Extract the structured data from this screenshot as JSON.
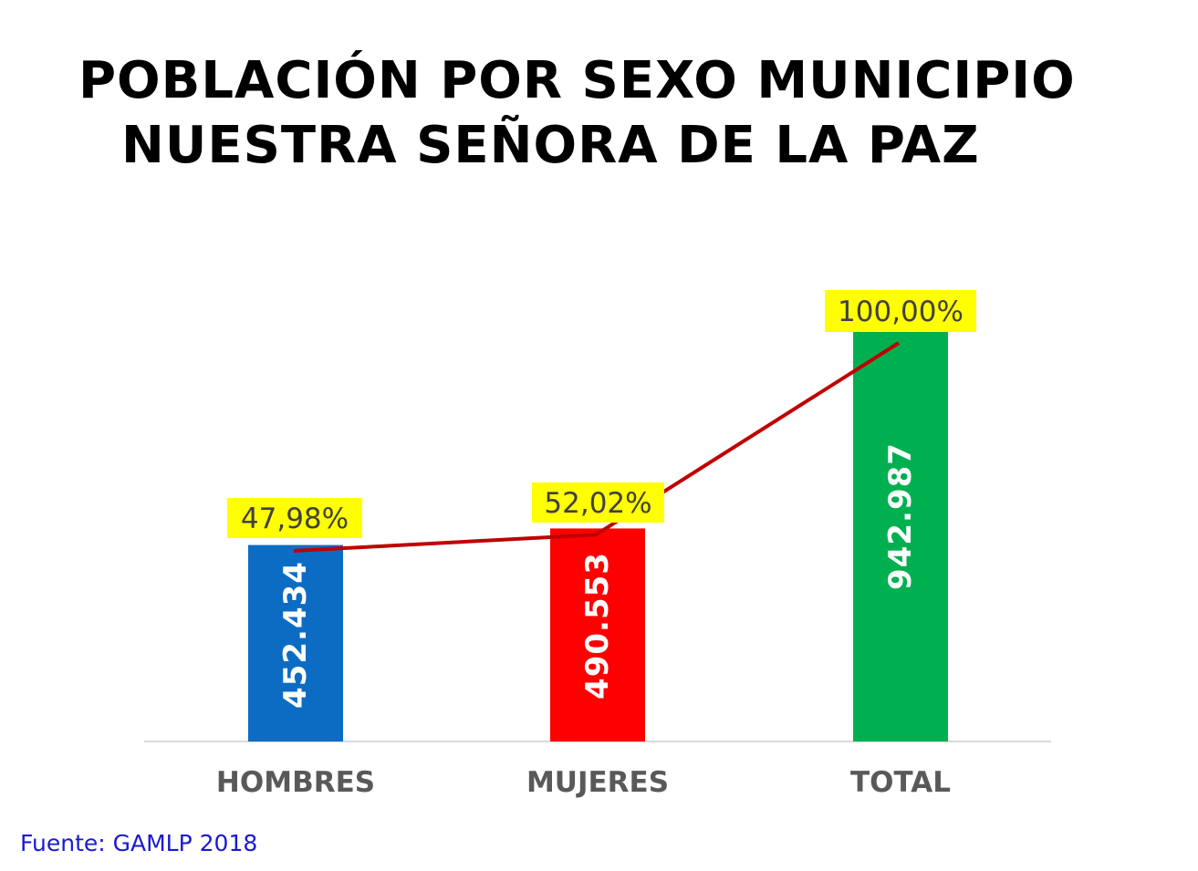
{
  "title_line1": "POBLACIÓN POR SEXO MUNICIPIO",
  "title_line2": "NUESTRA SEÑORA DE LA PAZ",
  "source": "Fuente: GAMLP 2018",
  "chart_data": {
    "type": "bar",
    "categories": [
      "HOMBRES",
      "MUJERES",
      "TOTAL"
    ],
    "values": [
      452434,
      490553,
      942987
    ],
    "value_labels": [
      "452.434",
      "490.553",
      "942.987"
    ],
    "bar_colors": [
      "#0c6cc4",
      "#ff0000",
      "#00b050"
    ],
    "ylim": [
      0,
      1000000
    ],
    "grid": false,
    "line_series": {
      "values": [
        47.98,
        52.02,
        100.0
      ],
      "labels": [
        "47,98%",
        "52,02%",
        "100,00%"
      ],
      "color": "#c00000",
      "label_bg": "#ffff00"
    }
  }
}
